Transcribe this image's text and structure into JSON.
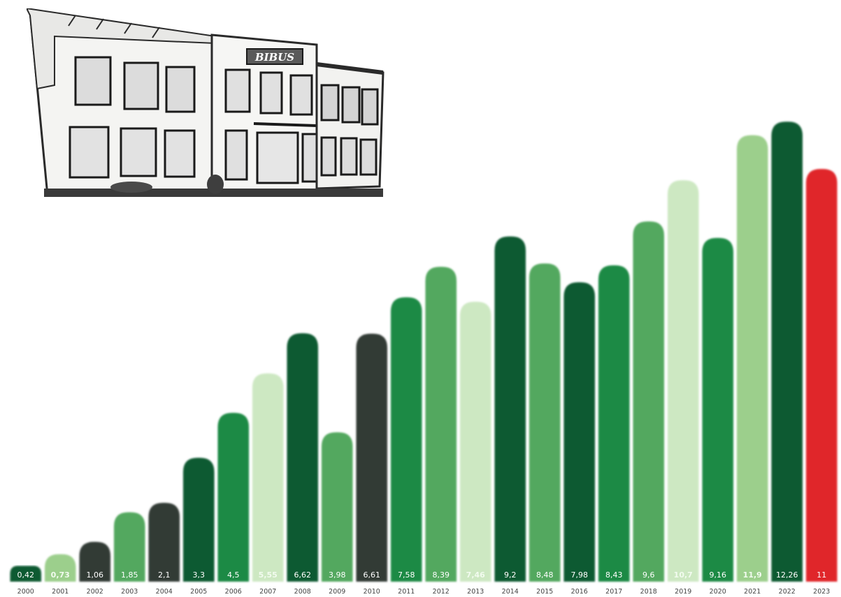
{
  "logo_text": "BIBUS",
  "colors": {
    "dark_gray": "#333a36",
    "dark_green": "#0f5a30",
    "green": "#1f8a44",
    "mid_green": "#52a85e",
    "light_green": "#9ccf8c",
    "pale_green": "#cde8c2",
    "red": "#e0262c"
  },
  "chart_data": {
    "type": "bar",
    "title": "",
    "xlabel": "",
    "ylabel": "",
    "ylim": [
      0,
      14.2
    ],
    "grid": false,
    "categories": [
      "2000",
      "2001",
      "2002",
      "2003",
      "2004",
      "2005",
      "2006",
      "2007",
      "2008",
      "2009",
      "2010",
      "2011",
      "2012",
      "2013",
      "2014",
      "2015",
      "2016",
      "2017",
      "2018",
      "2019",
      "2020",
      "2021",
      "2022",
      "2023"
    ],
    "values": [
      0.42,
      0.73,
      1.06,
      1.85,
      2.1,
      3.3,
      4.5,
      5.55,
      6.62,
      3.98,
      6.61,
      7.58,
      8.39,
      7.46,
      9.2,
      8.48,
      7.98,
      8.43,
      9.6,
      10.7,
      9.16,
      11.9,
      12.26,
      11
    ],
    "data_labels": [
      "0,42",
      "0,73",
      "1,06",
      "1,85",
      "2,1",
      "3,3",
      "4,5",
      "5,55",
      "6,62",
      "3,98",
      "6,61",
      "7,58",
      "8,39",
      "7,46",
      "9,2",
      "8,48",
      "7,98",
      "8,43",
      "9,6",
      "10,7",
      "9,16",
      "11,9",
      "12,26",
      "11"
    ],
    "bar_colors": [
      "dark_green",
      "light_green",
      "dark_gray",
      "mid_green",
      "dark_gray",
      "dark_green",
      "green",
      "pale_green",
      "dark_green",
      "mid_green",
      "dark_gray",
      "green",
      "mid_green",
      "pale_green",
      "dark_green",
      "mid_green",
      "dark_green",
      "green",
      "mid_green",
      "pale_green",
      "green",
      "light_green",
      "dark_green",
      "red"
    ]
  }
}
